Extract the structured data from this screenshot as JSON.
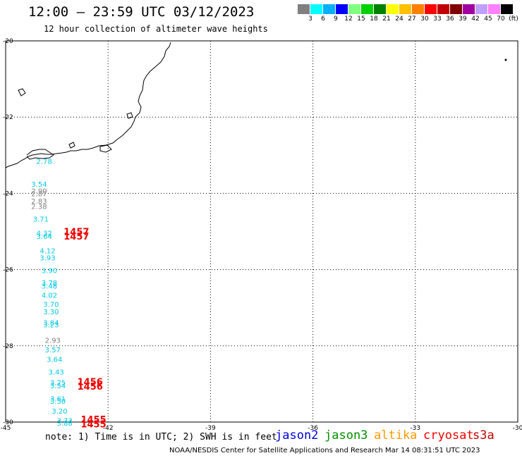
{
  "header": {
    "title": "12:00 – 23:59 UTC 03/12/2023",
    "subtitle": "12 hour collection of altimeter wave heights"
  },
  "colorbar": {
    "colors": [
      "#808080",
      "#00ffff",
      "#00b0ff",
      "#0000ff",
      "#80ff80",
      "#00d000",
      "#008000",
      "#ffff00",
      "#ffc000",
      "#ff8000",
      "#ff0000",
      "#c00000",
      "#800000",
      "#a000a0",
      "#c0a0ff",
      "#ff80ff",
      "#000000"
    ],
    "labels": [
      "3",
      "6",
      "9",
      "12",
      "15",
      "18",
      "21",
      "24",
      "27",
      "30",
      "33",
      "36",
      "39",
      "42",
      "45",
      "70",
      "(ft)"
    ]
  },
  "map": {
    "lon_range": [
      -45,
      -30
    ],
    "lat_range": [
      -30,
      -20
    ],
    "lon_ticks": [
      "-45",
      "-42",
      "-39",
      "-36",
      "-33",
      "-30"
    ],
    "lat_ticks": [
      "-20",
      "-22",
      "-24",
      "-26",
      "-28",
      "-30"
    ],
    "observations": [
      {
        "value": "2.78",
        "lat": -23.15,
        "lon": -44.1,
        "color": "#00c8e6"
      },
      {
        "value": "3.54",
        "lat": -23.75,
        "lon": -44.25,
        "color": "#00c8e6"
      },
      {
        "value": "2.90",
        "lat": -23.93,
        "lon": -44.25,
        "color": "#808080"
      },
      {
        "value": "2.87",
        "lat": -24.0,
        "lon": -44.25,
        "color": "#808080"
      },
      {
        "value": "2.83",
        "lat": -24.2,
        "lon": -44.25,
        "color": "#808080"
      },
      {
        "value": "2.38",
        "lat": -24.33,
        "lon": -44.25,
        "color": "#808080"
      },
      {
        "value": "3.71",
        "lat": -24.67,
        "lon": -44.2,
        "color": "#00c8e6"
      },
      {
        "value": "4.32",
        "lat": -25.04,
        "lon": -44.1,
        "color": "#00c8e6"
      },
      {
        "value": "3.64",
        "lat": -25.12,
        "lon": -44.1,
        "color": "#00c8e6"
      },
      {
        "value": "4.12",
        "lat": -25.5,
        "lon": -44.0,
        "color": "#00c8e6"
      },
      {
        "value": "3.93",
        "lat": -25.68,
        "lon": -44.0,
        "color": "#00c8e6"
      },
      {
        "value": "3.90",
        "lat": -26.02,
        "lon": -43.95,
        "color": "#00c8e6"
      },
      {
        "value": "3.78",
        "lat": -26.34,
        "lon": -43.95,
        "color": "#00c8e6"
      },
      {
        "value": "3.48",
        "lat": -26.42,
        "lon": -43.95,
        "color": "#00c8e6"
      },
      {
        "value": "4.02",
        "lat": -26.66,
        "lon": -43.95,
        "color": "#00c8e6"
      },
      {
        "value": "3.70",
        "lat": -26.9,
        "lon": -43.9,
        "color": "#00c8e6"
      },
      {
        "value": "3.30",
        "lat": -27.1,
        "lon": -43.9,
        "color": "#00c8e6"
      },
      {
        "value": "3.84",
        "lat": -27.38,
        "lon": -43.9,
        "color": "#00c8e6"
      },
      {
        "value": "3.23",
        "lat": -27.44,
        "lon": -43.9,
        "color": "#00c8e6"
      },
      {
        "value": "2.93",
        "lat": -27.85,
        "lon": -43.85,
        "color": "#808080"
      },
      {
        "value": "3.57",
        "lat": -28.1,
        "lon": -43.85,
        "color": "#00c8e6"
      },
      {
        "value": "3.64",
        "lat": -28.35,
        "lon": -43.8,
        "color": "#00c8e6"
      },
      {
        "value": "3.43",
        "lat": -28.68,
        "lon": -43.75,
        "color": "#00c8e6"
      },
      {
        "value": "3.25",
        "lat": -28.96,
        "lon": -43.7,
        "color": "#00c8e6"
      },
      {
        "value": "3.54",
        "lat": -29.04,
        "lon": -43.7,
        "color": "#00c8e6"
      },
      {
        "value": "3.61",
        "lat": -29.38,
        "lon": -43.7,
        "color": "#00c8e6"
      },
      {
        "value": "3.50",
        "lat": -29.45,
        "lon": -43.7,
        "color": "#00c8e6"
      },
      {
        "value": "3.20",
        "lat": -29.7,
        "lon": -43.65,
        "color": "#00c8e6"
      },
      {
        "value": "3.73",
        "lat": -29.95,
        "lon": -43.5,
        "color": "#00c8e6"
      },
      {
        "value": "3.88",
        "lat": -30.02,
        "lon": -43.5,
        "color": "#00c8e6"
      }
    ],
    "passes": [
      {
        "label": "1457",
        "lat": -25.0,
        "lon": -43.3
      },
      {
        "label": "1457",
        "lat": -25.12,
        "lon": -43.3
      },
      {
        "label": "1456",
        "lat": -28.94,
        "lon": -42.9
      },
      {
        "label": "1456",
        "lat": -29.06,
        "lon": -42.9
      },
      {
        "label": "1455",
        "lat": -29.93,
        "lon": -42.8
      },
      {
        "label": "1455",
        "lat": -30.05,
        "lon": -42.8
      }
    ]
  },
  "footer": {
    "note": "note:  1) Time is in UTC;  2) SWH is in feet",
    "satellites": [
      {
        "name": "jason2",
        "color": "#0000dd"
      },
      {
        "name": "jason3",
        "color": "#009000"
      },
      {
        "name": "altika",
        "color": "#ff9900"
      },
      {
        "name": "cryosat",
        "color": "#ee0000"
      },
      {
        "name": "s3a",
        "color": "#c00000"
      }
    ],
    "credit": "NOAA/NESDIS Center for Satellite Applications and Research    Mar 14 08:31:51 UTC 2023"
  }
}
